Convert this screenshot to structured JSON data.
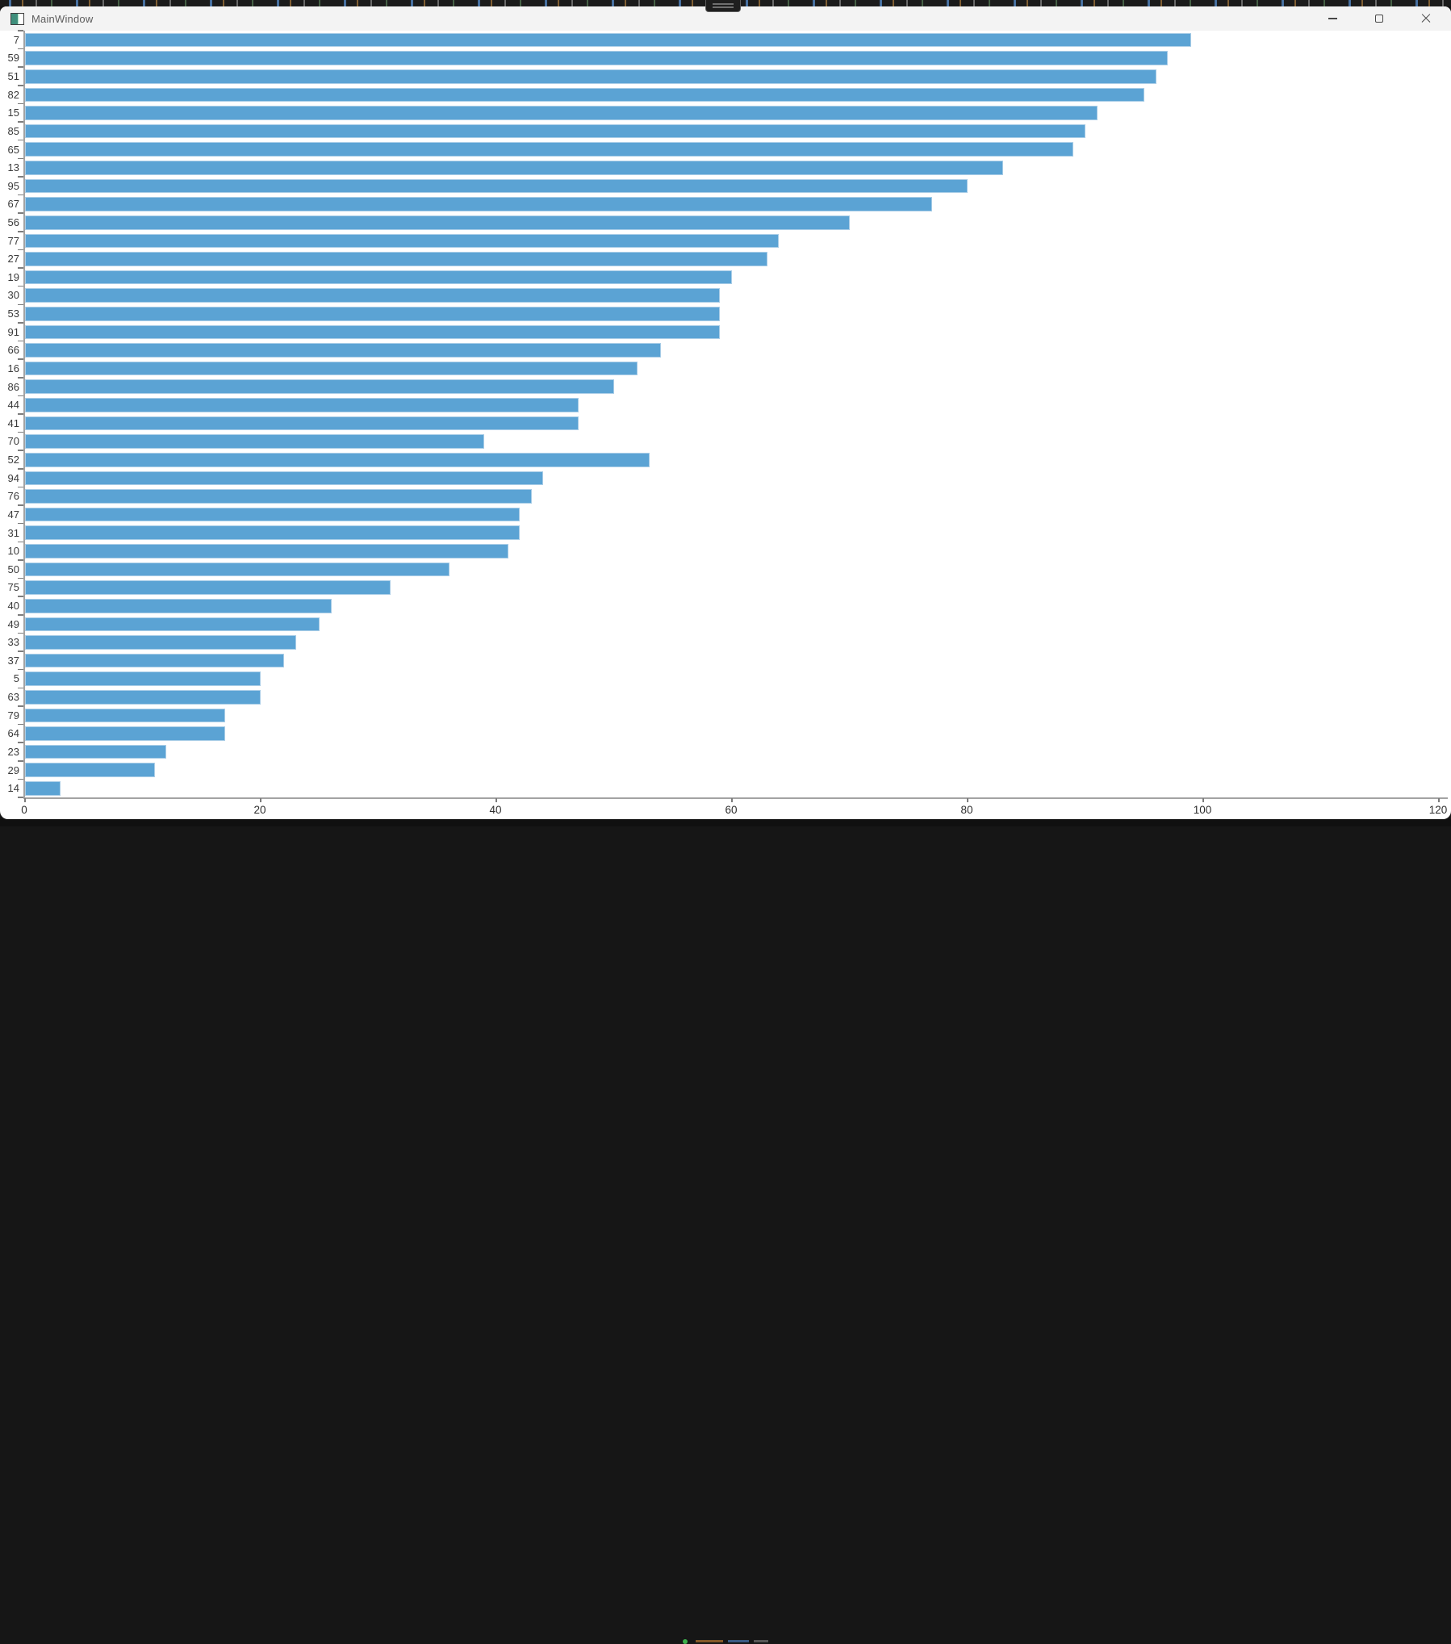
{
  "window": {
    "title": "MainWindow"
  },
  "chart_data": {
    "type": "bar",
    "orientation": "horizontal",
    "title": "",
    "xlabel": "",
    "ylabel": "",
    "categories": [
      "7",
      "59",
      "51",
      "82",
      "15",
      "85",
      "65",
      "13",
      "95",
      "67",
      "56",
      "77",
      "27",
      "19",
      "30",
      "53",
      "91",
      "66",
      "16",
      "86",
      "44",
      "41",
      "70",
      "52",
      "94",
      "76",
      "47",
      "31",
      "10",
      "50",
      "75",
      "40",
      "49",
      "33",
      "37",
      "5",
      "63",
      "79",
      "64",
      "23",
      "29",
      "14"
    ],
    "values": [
      99,
      97,
      96,
      95,
      91,
      90,
      89,
      83,
      80,
      77,
      70,
      64,
      63,
      60,
      59,
      59,
      59,
      54,
      52,
      50,
      47,
      47,
      39,
      53,
      44,
      43,
      42,
      42,
      41,
      36,
      31,
      26,
      25,
      23,
      22,
      20,
      20,
      17,
      17,
      12,
      11,
      3
    ],
    "xlim": [
      0,
      120
    ],
    "x_ticks": [
      0,
      20,
      40,
      60,
      80,
      100,
      120
    ],
    "grid": false,
    "legend": false,
    "bar_color": "#5ba3d4",
    "bar_edge_color": "#a9cde7",
    "axis_color": "#a3a3a3",
    "tick_label_color": "#3a3a3a"
  }
}
